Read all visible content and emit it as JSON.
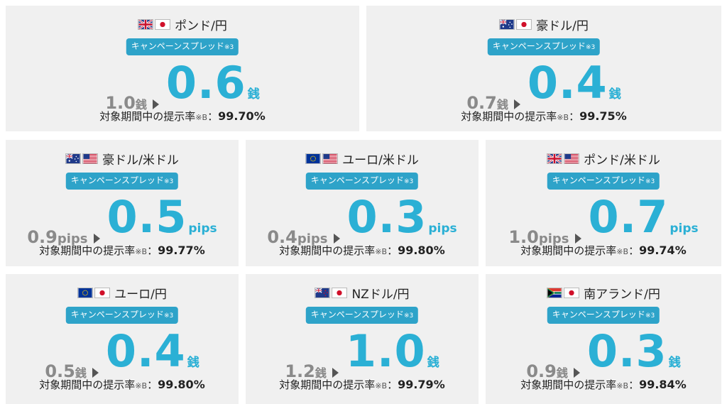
{
  "campaign_label": "キャンペーンスプレッド",
  "campaign_note": "※3",
  "rate_label": "対象期間中の提示率",
  "rate_note": "※B",
  "rate_sep": "：",
  "cards": [
    {
      "pair": "ポンド/円",
      "flags": [
        "flag-uk-icon",
        "flag-jp-icon"
      ],
      "old": "1.0",
      "new": "0.6",
      "unit": "銭",
      "rate": "99.70%"
    },
    {
      "pair": "豪ドル/円",
      "flags": [
        "flag-au-icon",
        "flag-jp-icon"
      ],
      "old": "0.7",
      "new": "0.4",
      "unit": "銭",
      "rate": "99.75%"
    },
    {
      "pair": "豪ドル/米ドル",
      "flags": [
        "flag-au-icon",
        "flag-us-icon"
      ],
      "old": "0.9",
      "new": "0.5",
      "unit": "pips",
      "rate": "99.77%"
    },
    {
      "pair": "ユーロ/米ドル",
      "flags": [
        "flag-eu-icon",
        "flag-us-icon"
      ],
      "old": "0.4",
      "new": "0.3",
      "unit": "pips",
      "rate": "99.80%"
    },
    {
      "pair": "ポンド/米ドル",
      "flags": [
        "flag-uk-icon",
        "flag-us-icon"
      ],
      "old": "1.0",
      "new": "0.7",
      "unit": "pips",
      "rate": "99.74%"
    },
    {
      "pair": "ユーロ/円",
      "flags": [
        "flag-eu-icon",
        "flag-jp-icon"
      ],
      "old": "0.5",
      "new": "0.4",
      "unit": "銭",
      "rate": "99.80%"
    },
    {
      "pair": "NZドル/円",
      "flags": [
        "flag-nz-icon",
        "flag-jp-icon"
      ],
      "old": "1.2",
      "new": "1.0",
      "unit": "銭",
      "rate": "99.79%"
    },
    {
      "pair": "南アランド/円",
      "flags": [
        "flag-za-icon",
        "flag-jp-icon"
      ],
      "old": "0.9",
      "new": "0.3",
      "unit": "銭",
      "rate": "99.84%"
    }
  ]
}
